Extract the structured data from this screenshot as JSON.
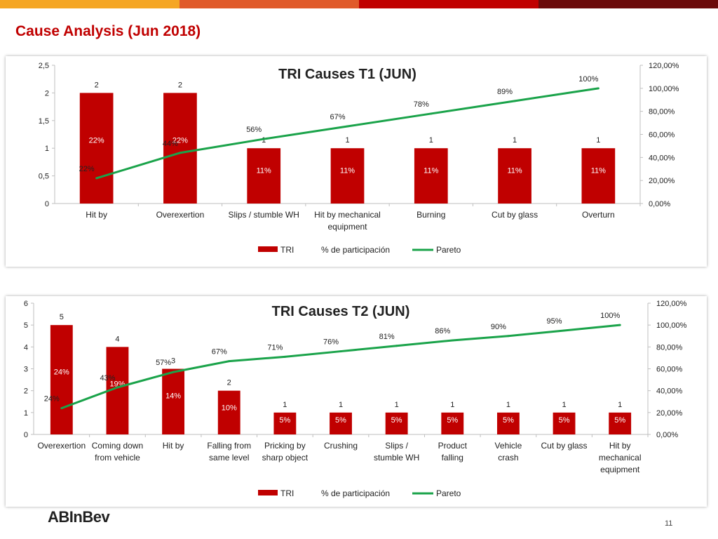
{
  "slide": {
    "title": "Cause Analysis (Jun 2018)",
    "page_number": "11",
    "logo_text": "ABInBev",
    "top_bar_colors": [
      "#f5a623",
      "#e05a2a",
      "#c00000",
      "#6b0a0a"
    ]
  },
  "colors": {
    "bar": "#c00000",
    "line": "#1aa34a",
    "axis": "#bfbfbf",
    "text": "#222222",
    "inner_label": "#ffffff"
  },
  "chart_data": [
    {
      "type": "bar",
      "title": "TRI Causes T1  (JUN)",
      "categories": [
        "Hit by",
        "Overexertion",
        "Slips / stumble WH",
        "Hit by mechanical equipment",
        "Burning",
        "Cut by glass",
        "Overturn"
      ],
      "series": [
        {
          "name": "TRI",
          "type": "bar",
          "axis": "left",
          "values": [
            2,
            2,
            1,
            1,
            1,
            1,
            1
          ]
        },
        {
          "name": "% de participación",
          "type": "label",
          "values": [
            22,
            22,
            11,
            11,
            11,
            11,
            11
          ],
          "labels": [
            "22%",
            "22%",
            "11%",
            "11%",
            "11%",
            "11%",
            "11%"
          ]
        },
        {
          "name": "Pareto",
          "type": "line",
          "axis": "right",
          "values": [
            22,
            44,
            56,
            67,
            78,
            89,
            100
          ],
          "labels": [
            "22%",
            "44%",
            "56%",
            "67%",
            "78%",
            "89%",
            "100%"
          ]
        }
      ],
      "ylim": [
        0,
        2.5
      ],
      "y_ticks": [
        "0",
        "0,5",
        "1",
        "1,5",
        "2",
        "2,5"
      ],
      "y2lim": [
        0,
        120
      ],
      "y2_ticks": [
        "0,00%",
        "20,00%",
        "40,00%",
        "60,00%",
        "80,00%",
        "100,00%",
        "120,00%"
      ],
      "legend": [
        "TRI",
        "% de participación",
        "Pareto"
      ],
      "legend_position": "bottom"
    },
    {
      "type": "bar",
      "title": "TRI Causes T2  (JUN)",
      "categories": [
        "Overexertion",
        "Coming down from vehicle",
        "Hit by",
        "Falling from same level",
        "Pricking by sharp object",
        "Crushing",
        "Slips / stumble WH",
        "Product falling",
        "Vehicle crash",
        "Cut by glass",
        "Hit by mechanical equipment"
      ],
      "series": [
        {
          "name": "TRI",
          "type": "bar",
          "axis": "left",
          "values": [
            5,
            4,
            3,
            2,
            1,
            1,
            1,
            1,
            1,
            1,
            1
          ]
        },
        {
          "name": "% de participación",
          "type": "label",
          "values": [
            24,
            19,
            14,
            10,
            5,
            5,
            5,
            5,
            5,
            5,
            5
          ],
          "labels": [
            "24%",
            "19%",
            "14%",
            "10%",
            "5%",
            "5%",
            "5%",
            "5%",
            "5%",
            "5%",
            "5%"
          ]
        },
        {
          "name": "Pareto",
          "type": "line",
          "axis": "right",
          "values": [
            24,
            43,
            57,
            67,
            71,
            76,
            81,
            86,
            90,
            95,
            100
          ],
          "labels": [
            "24%",
            "43%",
            "57%",
            "67%",
            "71%",
            "76%",
            "81%",
            "86%",
            "90%",
            "95%",
            "100%"
          ]
        }
      ],
      "ylim": [
        0,
        6
      ],
      "y_ticks": [
        "0",
        "1",
        "2",
        "3",
        "4",
        "5",
        "6"
      ],
      "y2lim": [
        0,
        120
      ],
      "y2_ticks": [
        "0,00%",
        "20,00%",
        "40,00%",
        "60,00%",
        "80,00%",
        "100,00%",
        "120,00%"
      ],
      "legend": [
        "TRI",
        "% de participación",
        "Pareto"
      ],
      "legend_position": "bottom"
    }
  ]
}
